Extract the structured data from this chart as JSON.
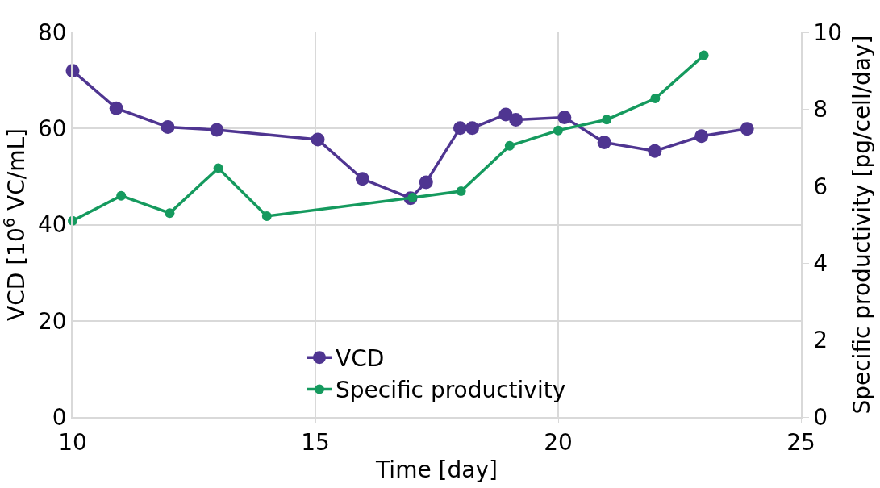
{
  "chart_data": {
    "type": "line",
    "xlabel": "Time [day]",
    "ylabel": "VCD [10$^{6}$ VC/mL]",
    "y2label": "Specific productivity [pg/cell/day]",
    "xlim": [
      10,
      25
    ],
    "xticks": [
      10,
      15,
      20,
      25
    ],
    "ylim": [
      0,
      80
    ],
    "yticks": [
      0,
      20,
      40,
      60,
      80
    ],
    "y2lim": [
      0,
      10
    ],
    "y2ticks": [
      0,
      2,
      4,
      6,
      8,
      10
    ],
    "grid": true,
    "legend": "bottom",
    "marker": "circle",
    "line_style": "solid",
    "series": [
      {
        "name": "VCD",
        "color": "#4f3591",
        "x": [
          10,
          10.9,
          11.96,
          12.97,
          15.05,
          15.97,
          16.96,
          17.28,
          17.98,
          18.23,
          18.92,
          19.13,
          20.13,
          20.95,
          21.99,
          22.95,
          23.89
        ],
        "values": [
          72,
          64.2,
          60.3,
          59.7,
          57.7,
          49.5,
          45.5,
          48.8,
          60.1,
          60.1,
          62.9,
          61.8,
          62.3,
          57.1,
          55.3,
          58.4,
          59.9
        ]
      },
      {
        "name": "Specific productivity",
        "color": "#159a5e",
        "axis": "y2",
        "x": [
          10,
          11,
          12,
          13,
          14,
          17,
          18,
          19,
          20,
          21,
          22,
          23
        ],
        "values": [
          5.1,
          5.75,
          5.3,
          6.47,
          5.22,
          5.7,
          5.87,
          7.05,
          7.45,
          7.73,
          8.28,
          9.4
        ]
      }
    ]
  }
}
